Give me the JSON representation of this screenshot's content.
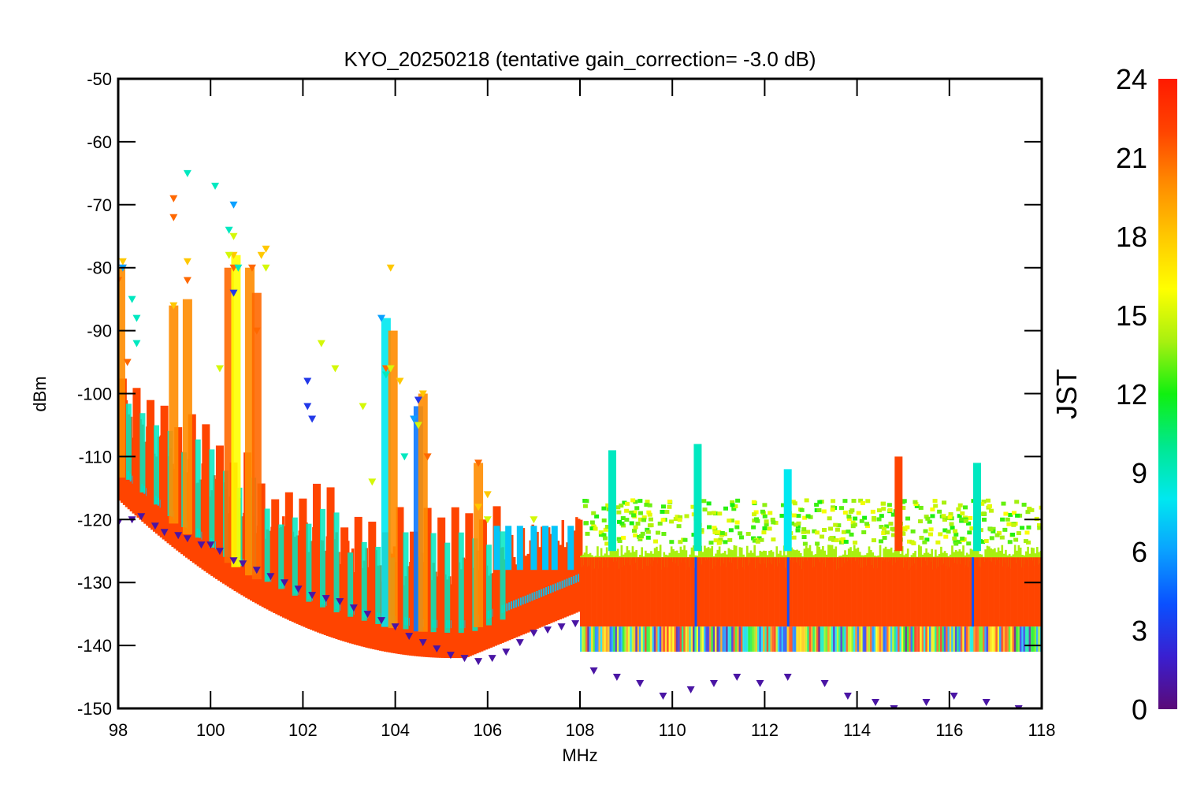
{
  "chart_data": {
    "type": "scatter",
    "title": "KYO_20250218 (tentative gain_correction= -3.0 dB)",
    "xlabel": "MHz",
    "ylabel": "dBm",
    "xlim": [
      98,
      118
    ],
    "ylim": [
      -150,
      -50
    ],
    "xticks": [
      "98",
      "100",
      "102",
      "104",
      "106",
      "108",
      "110",
      "112",
      "114",
      "116",
      "118"
    ],
    "yticks": [
      "-50",
      "-60",
      "-70",
      "-80",
      "-90",
      "-100",
      "-110",
      "-120",
      "-130",
      "-140",
      "-150"
    ],
    "grid": false,
    "colorbar": {
      "label": "JST",
      "range": [
        0,
        24
      ],
      "ticks": [
        "0",
        "3",
        "6",
        "9",
        "12",
        "15",
        "18",
        "21",
        "24"
      ],
      "colormap": "rainbow",
      "stops": [
        "#5a0a78",
        "#3a1fd0",
        "#0a50ff",
        "#0aa0ff",
        "#00e8f0",
        "#00e890",
        "#10f010",
        "#a8f010",
        "#ffff00",
        "#ffc800",
        "#ff8c00",
        "#ff4400",
        "#ff1a00"
      ]
    },
    "series": [
      {
        "hour": 21,
        "values": [
          [
            98.0,
            -82
          ],
          [
            98.1,
            -80
          ],
          [
            98.2,
            -95
          ],
          [
            99.2,
            -69
          ],
          [
            99.2,
            -72
          ],
          [
            99.5,
            -82
          ],
          [
            100.5,
            -80
          ],
          [
            100.9,
            -80
          ],
          [
            101.0,
            -90
          ],
          [
            103.8,
            -96
          ],
          [
            104.5,
            -105
          ],
          [
            104.7,
            -110
          ],
          [
            105.8,
            -111
          ]
        ]
      },
      {
        "hour": 18,
        "values": [
          [
            98.1,
            -79
          ],
          [
            99.2,
            -86
          ],
          [
            99.5,
            -79
          ],
          [
            100.5,
            -78
          ],
          [
            101.1,
            -78
          ],
          [
            101.2,
            -77
          ],
          [
            103.9,
            -80
          ],
          [
            104.1,
            -98
          ],
          [
            104.6,
            -100
          ],
          [
            105.8,
            -118
          ],
          [
            106.0,
            -116
          ]
        ]
      },
      {
        "hour": 15,
        "values": [
          [
            100.2,
            -96
          ],
          [
            100.4,
            -78
          ],
          [
            100.5,
            -75
          ],
          [
            101.2,
            -80
          ],
          [
            102.4,
            -92
          ],
          [
            102.7,
            -96
          ],
          [
            103.3,
            -102
          ],
          [
            103.5,
            -114
          ],
          [
            103.9,
            -96
          ],
          [
            104.5,
            -105
          ],
          [
            106.0,
            -120
          ],
          [
            107.0,
            -120
          ]
        ]
      },
      {
        "hour": 9,
        "values": [
          [
            98.3,
            -85
          ],
          [
            98.4,
            -88
          ],
          [
            98.4,
            -92
          ],
          [
            99.5,
            -65
          ],
          [
            100.1,
            -67
          ],
          [
            100.4,
            -74
          ],
          [
            100.6,
            -80
          ],
          [
            103.8,
            -97
          ],
          [
            104.2,
            -110
          ]
        ]
      },
      {
        "hour": 6,
        "values": [
          [
            98.1,
            -80
          ],
          [
            100.5,
            -70
          ],
          [
            103.7,
            -88
          ],
          [
            104.4,
            -104
          ]
        ]
      },
      {
        "hour": 3,
        "values": [
          [
            100.5,
            -84
          ],
          [
            102.1,
            -98
          ],
          [
            102.1,
            -102
          ],
          [
            102.2,
            -104
          ],
          [
            104.5,
            -101
          ]
        ]
      },
      {
        "hour": 1,
        "values": [
          [
            98.0,
            -120.5
          ],
          [
            98.3,
            -120
          ],
          [
            98.5,
            -119.5
          ],
          [
            98.8,
            -121
          ],
          [
            99.0,
            -122
          ],
          [
            99.3,
            -122.5
          ],
          [
            99.5,
            -123
          ],
          [
            99.8,
            -124
          ],
          [
            100.0,
            -124
          ],
          [
            100.2,
            -125
          ],
          [
            100.5,
            -126.5
          ],
          [
            100.7,
            -127
          ],
          [
            101.0,
            -128
          ],
          [
            101.3,
            -129
          ],
          [
            101.6,
            -130
          ],
          [
            101.9,
            -131
          ],
          [
            102.2,
            -132
          ],
          [
            102.5,
            -132.5
          ],
          [
            102.8,
            -133
          ],
          [
            103.1,
            -134
          ],
          [
            103.4,
            -135
          ],
          [
            103.7,
            -136
          ],
          [
            104.0,
            -137
          ],
          [
            104.3,
            -138.5
          ],
          [
            104.6,
            -139.5
          ],
          [
            104.9,
            -140.5
          ],
          [
            105.2,
            -141.5
          ],
          [
            105.5,
            -142
          ],
          [
            105.8,
            -142.5
          ],
          [
            106.1,
            -142
          ],
          [
            106.4,
            -141
          ],
          [
            106.7,
            -139.5
          ],
          [
            107.0,
            -138
          ],
          [
            107.3,
            -137.5
          ],
          [
            107.6,
            -137
          ],
          [
            107.9,
            -136.5
          ],
          [
            108.3,
            -144
          ],
          [
            108.8,
            -145
          ],
          [
            109.3,
            -146
          ],
          [
            109.8,
            -148
          ],
          [
            110.4,
            -147
          ],
          [
            110.9,
            -146
          ],
          [
            111.4,
            -145
          ],
          [
            111.9,
            -146
          ],
          [
            112.5,
            -145
          ],
          [
            113.3,
            -146
          ],
          [
            113.8,
            -148
          ],
          [
            114.4,
            -149
          ],
          [
            114.8,
            -150
          ],
          [
            115.5,
            -149
          ],
          [
            116.1,
            -148
          ],
          [
            116.8,
            -149
          ],
          [
            117.5,
            -150
          ]
        ]
      }
    ]
  }
}
